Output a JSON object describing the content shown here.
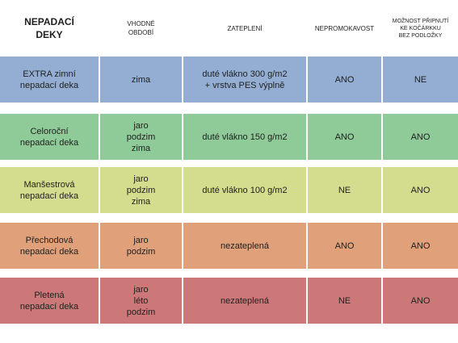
{
  "table": {
    "headers": [
      "NEPADACÍ\nDEKY",
      "VHODNÉ\nOBDOBÍ",
      "ZATEPLENÍ",
      "NEPROMOKAVOST",
      "MOŽNOST PŘIPNUTÍ\nKE KOČÁRKKU\nBEZ PODLOŽKY"
    ],
    "rows": [
      {
        "name": "EXTRA zimní\nnepadací deka",
        "season": "zima",
        "insulation": "duté vlákno 300 g/m2\n+ vrstva PES výplně",
        "waterproof": "ANO",
        "attach": "NE",
        "color": "#93aed2"
      },
      {
        "name": "Celoroční\nnepadací deka",
        "season": "jaro\npodzim\nzima",
        "insulation": "duté vlákno 150 g/m2",
        "waterproof": "ANO",
        "attach": "ANO",
        "color": "#8fcb98"
      },
      {
        "name": "Manšestrová\nnepadací deka",
        "season": "jaro\npodzim\nzima",
        "insulation": "duté vlákno 100 g/m2",
        "waterproof": "NE",
        "attach": "ANO",
        "color": "#d4dc8e"
      },
      {
        "name": "Přechodová\nnepadací deka",
        "season": "jaro\npodzim",
        "insulation": "nezateplená",
        "waterproof": "ANO",
        "attach": "ANO",
        "color": "#e0a07a"
      },
      {
        "name": "Pletená\nnepadací deka",
        "season": "jaro\nléto\npodzim",
        "insulation": "nezateplená",
        "waterproof": "NE",
        "attach": "ANO",
        "color": "#cc7878"
      }
    ]
  }
}
